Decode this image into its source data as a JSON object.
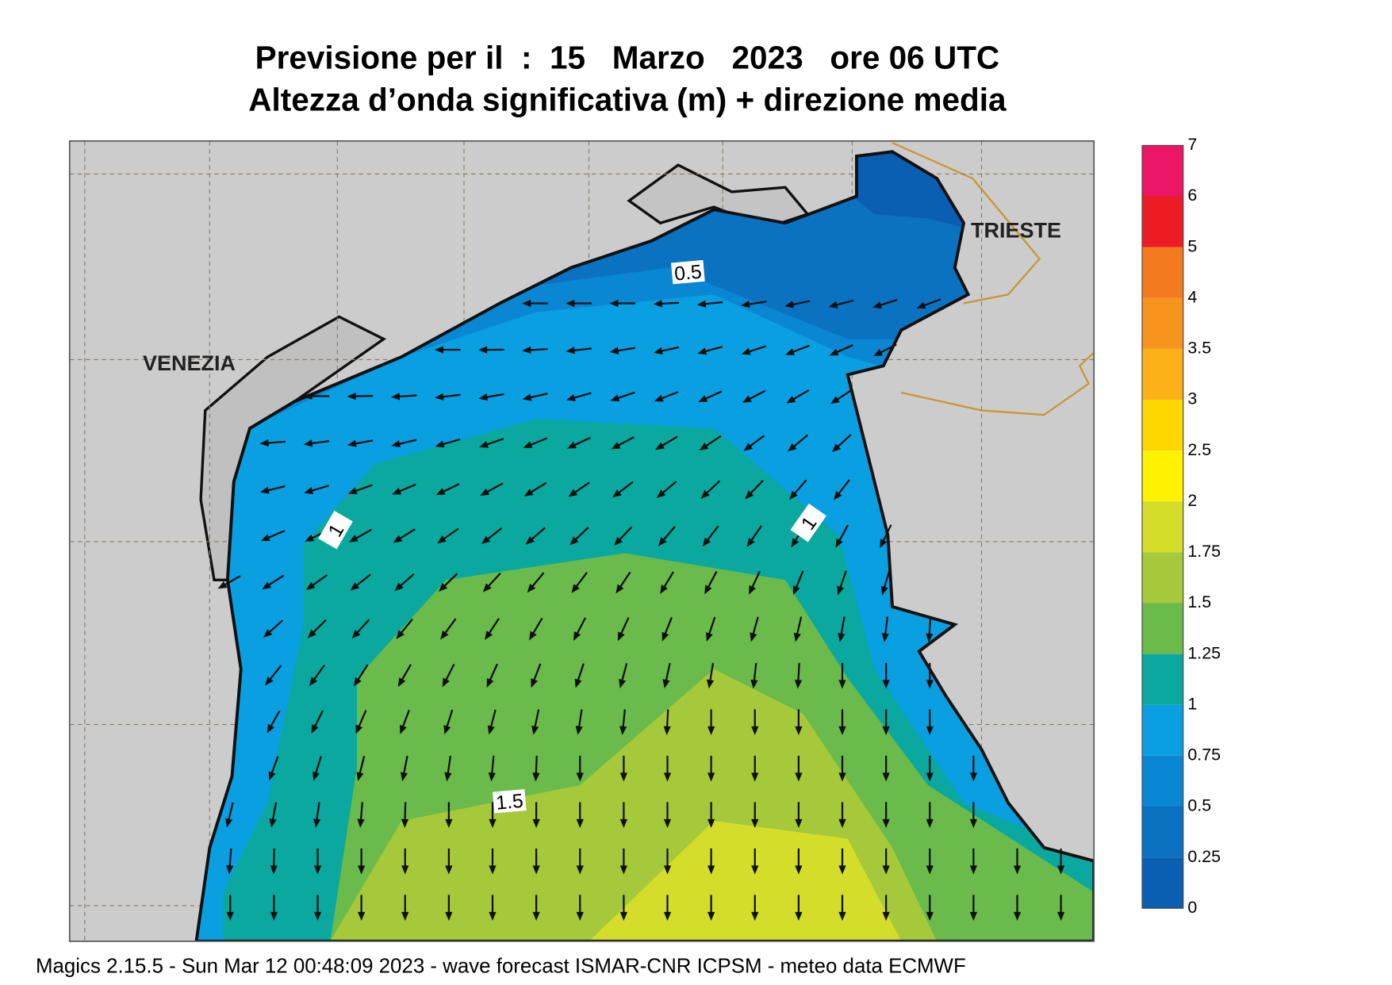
{
  "header": {
    "title": "Previsione per il  :  15   Marzo   2023   ore 06 UTC",
    "subtitle": "Altezza d’onda significativa (m) + direzione media"
  },
  "map": {
    "places": [
      "VENEZIA",
      "TRIESTE"
    ],
    "contour_labels": [
      "0.5",
      "1",
      "1",
      "1.5"
    ]
  },
  "colorbar": {
    "levels": [
      0,
      0.25,
      0.5,
      0.75,
      1,
      1.25,
      1.5,
      1.75,
      2,
      2.5,
      3,
      3.5,
      4,
      5,
      6,
      7
    ],
    "colors": [
      "#0b5fb3",
      "#0b72c2",
      "#0a87d2",
      "#0a9fe0",
      "#0aa89e",
      "#6aba4c",
      "#a5c93a",
      "#d3dd2a",
      "#fff200",
      "#ffd700",
      "#fbb117",
      "#f7941d",
      "#f47a20",
      "#ec1c24",
      "#ec1566"
    ]
  },
  "footer": "Magics 2.15.5 - Sun Mar 12 00:48:09 2023 - wave forecast  ISMAR-CNR  ICPSM - meteo data   ECMWF"
}
